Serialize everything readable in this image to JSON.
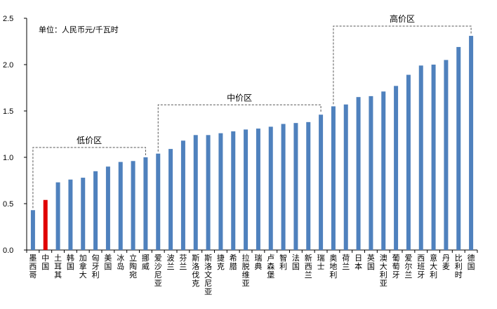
{
  "chart_data": {
    "type": "bar",
    "title": "",
    "unit_note": "单位：人民币元/千瓦时",
    "xlabel": "",
    "ylabel": "",
    "ylim": [
      0,
      2.5
    ],
    "yticks": [
      "0.0",
      "0.5",
      "1.0",
      "1.5",
      "2.0",
      "2.5"
    ],
    "grid": false,
    "categories": [
      "墨西哥",
      "中国",
      "土耳其",
      "韩国",
      "加拿大",
      "匈牙利",
      "美国",
      "冰岛",
      "立陶宛",
      "挪威",
      "爱沙尼亚",
      "波兰",
      "芬兰",
      "斯洛伐克",
      "斯洛文尼亚",
      "捷克",
      "希腊",
      "拉脱维亚",
      "瑞典",
      "卢森堡",
      "智利",
      "法国",
      "新西兰",
      "瑞士",
      "奥地利",
      "荷兰",
      "日本",
      "英国",
      "澳大利亚",
      "葡萄牙",
      "爱尔兰",
      "西班牙",
      "意大利",
      "丹麦",
      "比利时",
      "德国"
    ],
    "values": [
      0.43,
      0.54,
      0.73,
      0.76,
      0.78,
      0.85,
      0.9,
      0.95,
      0.96,
      1.0,
      1.04,
      1.09,
      1.18,
      1.24,
      1.24,
      1.26,
      1.28,
      1.3,
      1.31,
      1.33,
      1.36,
      1.37,
      1.38,
      1.46,
      1.55,
      1.57,
      1.65,
      1.66,
      1.71,
      1.77,
      1.89,
      1.99,
      2.0,
      2.05,
      2.19,
      2.31
    ],
    "highlight_index": 1,
    "colors": {
      "bar": "#4F81BD",
      "highlight": "#E00000"
    },
    "zones": [
      {
        "label": "低价区",
        "from": 0,
        "to": 9
      },
      {
        "label": "中价区",
        "from": 10,
        "to": 23
      },
      {
        "label": "高价区",
        "from": 24,
        "to": 35
      }
    ]
  }
}
